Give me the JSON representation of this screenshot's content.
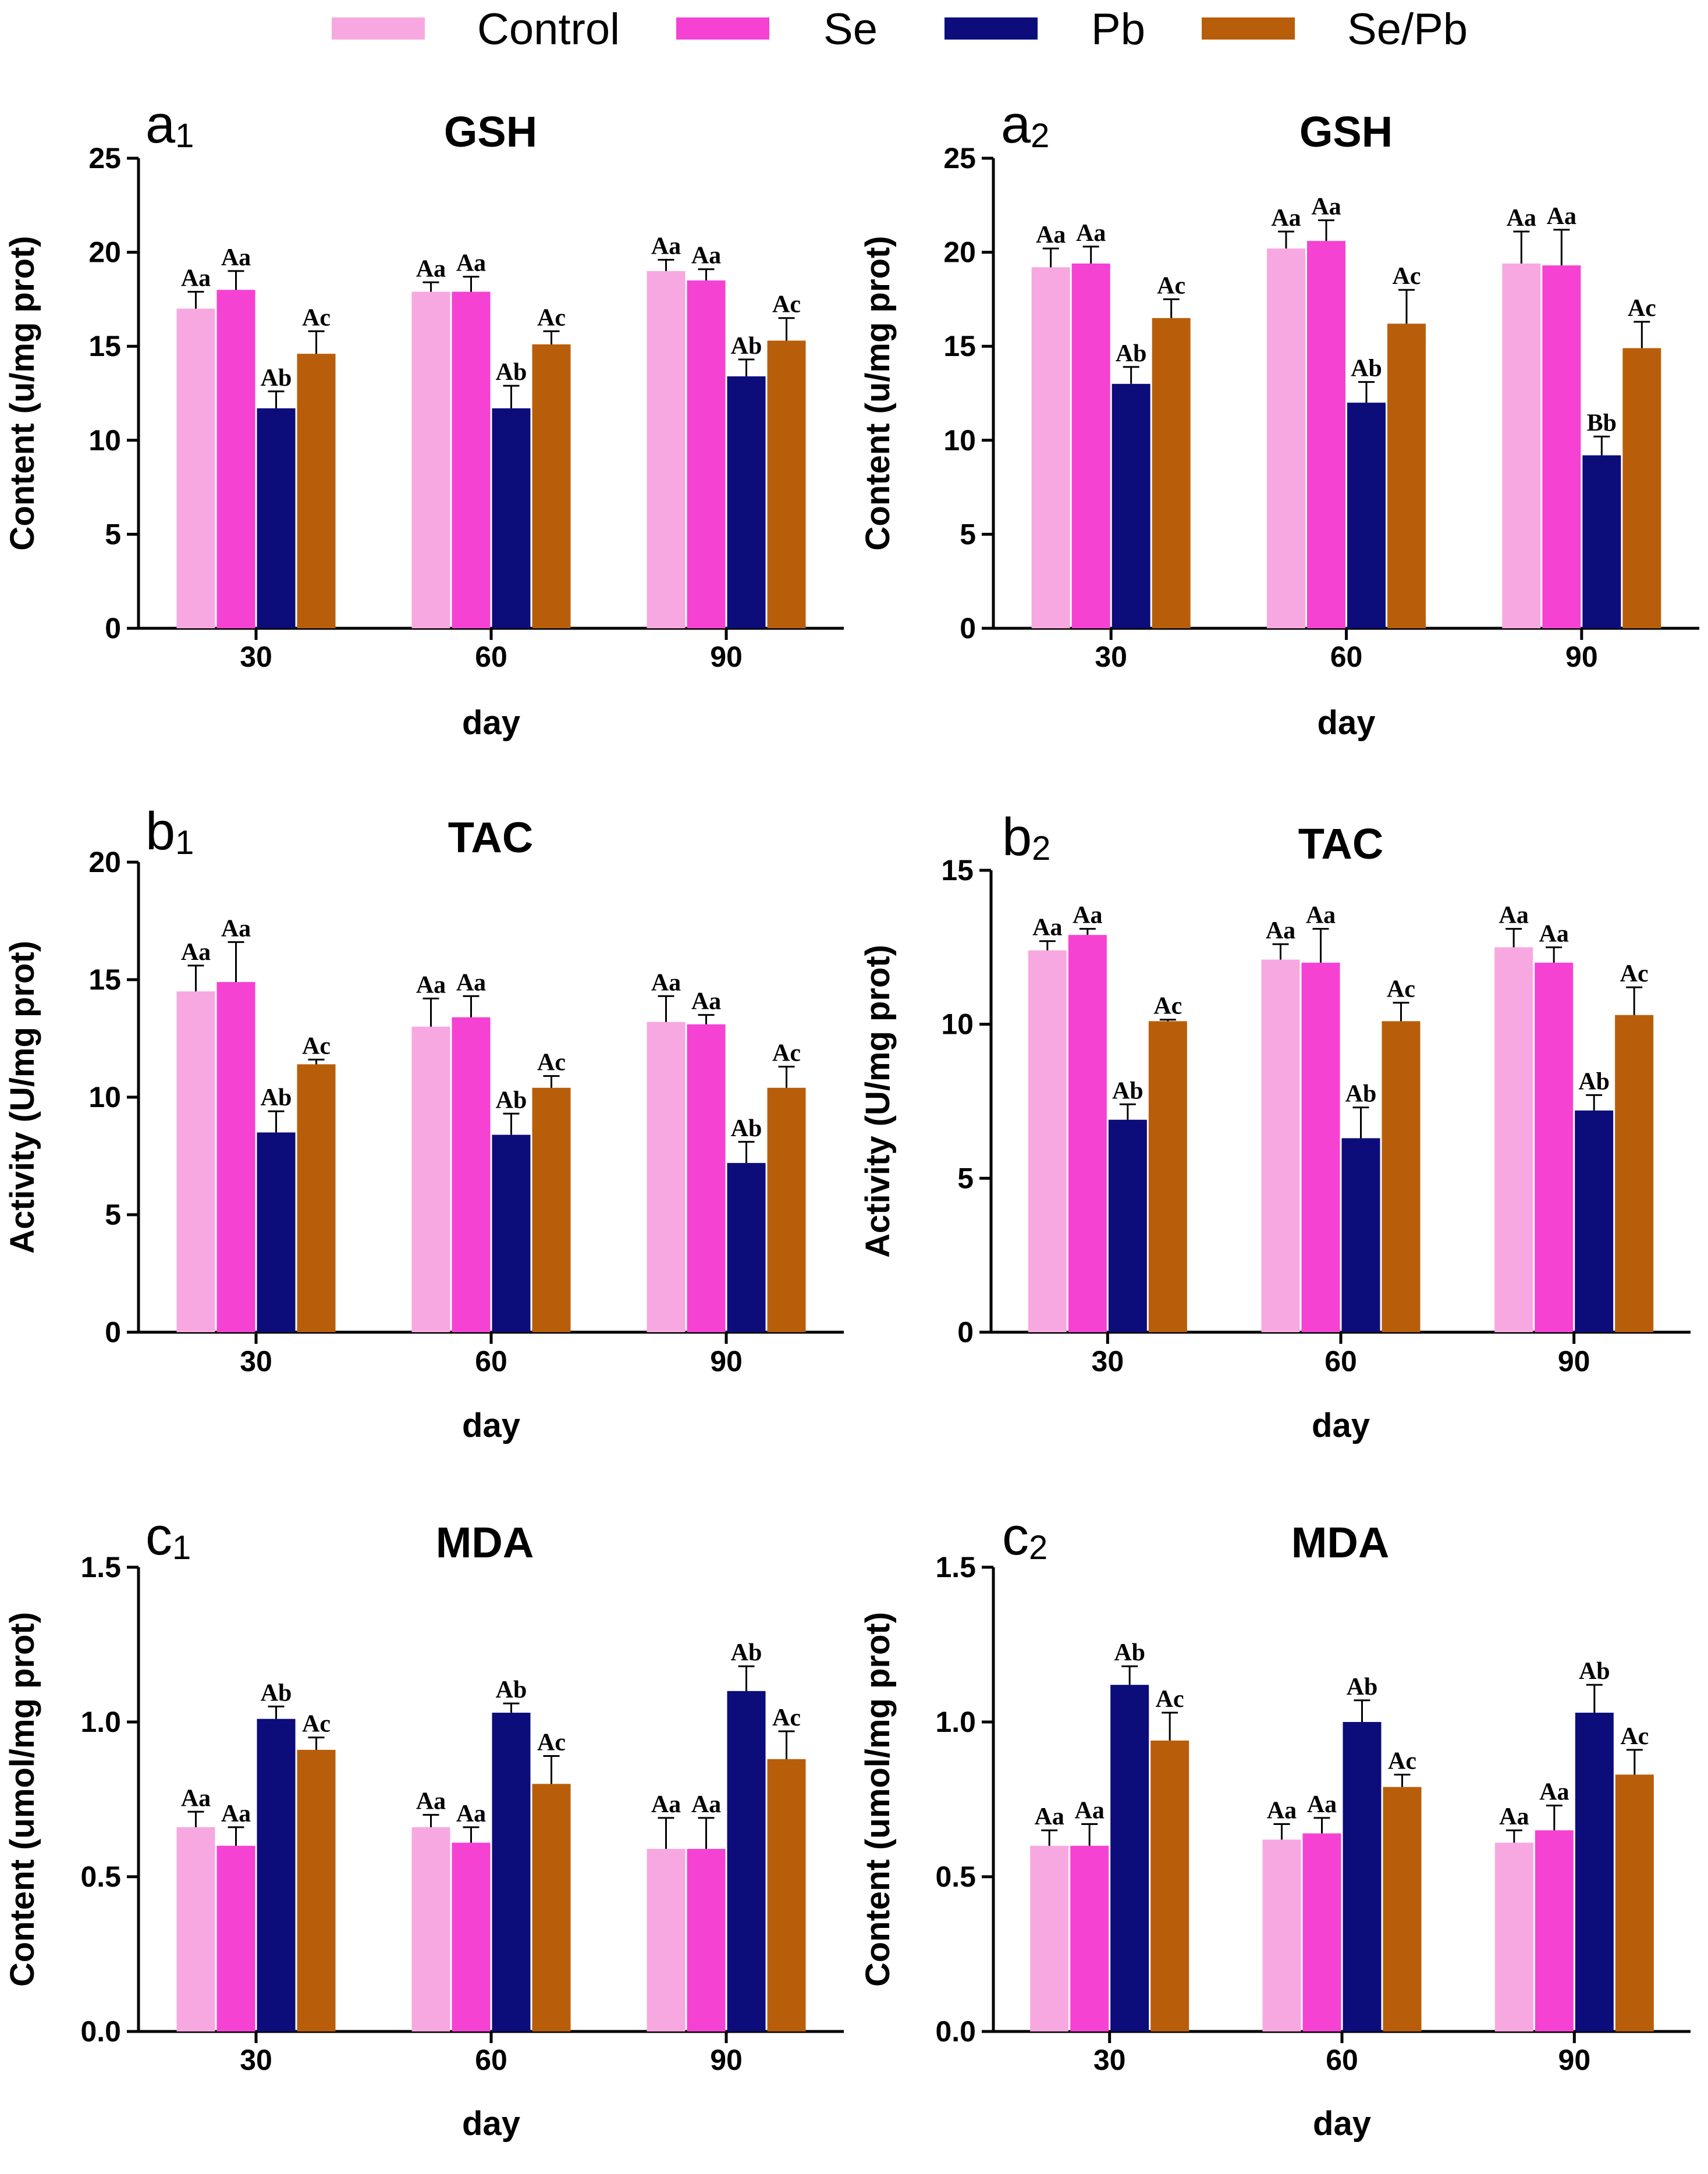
{
  "legend": [
    {
      "name": "Control",
      "color": "#F7A8E0"
    },
    {
      "name": "Se",
      "color": "#F542D2"
    },
    {
      "name": "Pb",
      "color": "#0C0D7A"
    },
    {
      "name": "Se/Pb",
      "color": "#B85E0A"
    }
  ],
  "chart_data": [
    {
      "id": "a1",
      "tag": "a",
      "sub": "1",
      "title": "GSH",
      "type": "bar",
      "ylabel": "Content (u/mg prot)",
      "xlabel": "day",
      "categories": [
        "30",
        "60",
        "90"
      ],
      "ylim": [
        0,
        25
      ],
      "yticks": [
        "0",
        "5",
        "10",
        "15",
        "20",
        "25"
      ],
      "series": [
        {
          "name": "Control",
          "values": [
            17.0,
            17.9,
            19.0
          ],
          "errors": [
            0.9,
            0.5,
            0.6
          ],
          "labels": [
            "Aa",
            "Aa",
            "Aa"
          ]
        },
        {
          "name": "Se",
          "values": [
            18.0,
            17.9,
            18.5
          ],
          "errors": [
            1.0,
            0.8,
            0.6
          ],
          "labels": [
            "Aa",
            "Aa",
            "Aa"
          ]
        },
        {
          "name": "Pb",
          "values": [
            11.7,
            11.7,
            13.4
          ],
          "errors": [
            0.9,
            1.2,
            0.9
          ],
          "labels": [
            "Ab",
            "Ab",
            "Ab"
          ]
        },
        {
          "name": "Se/Pb",
          "values": [
            14.6,
            15.1,
            15.3
          ],
          "errors": [
            1.2,
            0.7,
            1.2
          ],
          "labels": [
            "Ac",
            "Ac",
            "Ac"
          ]
        }
      ]
    },
    {
      "id": "a2",
      "tag": "a",
      "sub": "2",
      "title": "GSH",
      "type": "bar",
      "ylabel": "Content (u/mg prot)",
      "xlabel": "day",
      "categories": [
        "30",
        "60",
        "90"
      ],
      "ylim": [
        0,
        25
      ],
      "yticks": [
        "0",
        "5",
        "10",
        "15",
        "20",
        "25"
      ],
      "series": [
        {
          "name": "Control",
          "values": [
            19.2,
            20.2,
            19.4
          ],
          "errors": [
            1.0,
            0.9,
            1.7
          ],
          "labels": [
            "Aa",
            "Aa",
            "Aa"
          ]
        },
        {
          "name": "Se",
          "values": [
            19.4,
            20.6,
            19.3
          ],
          "errors": [
            0.9,
            1.1,
            1.9
          ],
          "labels": [
            "Aa",
            "Aa",
            "Aa"
          ]
        },
        {
          "name": "Pb",
          "values": [
            13.0,
            12.0,
            9.2
          ],
          "errors": [
            0.9,
            1.1,
            1.0
          ],
          "labels": [
            "Ab",
            "Ab",
            "Bb"
          ]
        },
        {
          "name": "Se/Pb",
          "values": [
            16.5,
            16.2,
            14.9
          ],
          "errors": [
            1.0,
            1.8,
            1.4
          ],
          "labels": [
            "Ac",
            "Ac",
            "Ac"
          ]
        }
      ]
    },
    {
      "id": "b1",
      "tag": "b",
      "sub": "1",
      "title": "TAC",
      "type": "bar",
      "ylabel": "Activity (U/mg prot)",
      "xlabel": "day",
      "categories": [
        "30",
        "60",
        "90"
      ],
      "ylim": [
        0,
        20
      ],
      "yticks": [
        "0",
        "5",
        "10",
        "15",
        "20"
      ],
      "series": [
        {
          "name": "Control",
          "values": [
            14.5,
            13.0,
            13.2
          ],
          "errors": [
            1.1,
            1.2,
            1.1
          ],
          "labels": [
            "Aa",
            "Aa",
            "Aa"
          ]
        },
        {
          "name": "Se",
          "values": [
            14.9,
            13.4,
            13.1
          ],
          "errors": [
            1.7,
            0.9,
            0.4
          ],
          "labels": [
            "Aa",
            "Aa",
            "Aa"
          ]
        },
        {
          "name": "Pb",
          "values": [
            8.5,
            8.4,
            7.2
          ],
          "errors": [
            0.9,
            0.9,
            0.9
          ],
          "labels": [
            "Ab",
            "Ab",
            "Ab"
          ]
        },
        {
          "name": "Se/Pb",
          "values": [
            11.4,
            10.4,
            10.4
          ],
          "errors": [
            0.2,
            0.5,
            0.9
          ],
          "labels": [
            "Ac",
            "Ac",
            "Ac"
          ]
        }
      ]
    },
    {
      "id": "b2",
      "tag": "b",
      "sub": "2",
      "title": "TAC",
      "type": "bar",
      "ylabel": "Activity (U/mg prot)",
      "xlabel": "day",
      "categories": [
        "30",
        "60",
        "90"
      ],
      "ylim": [
        0,
        15
      ],
      "yticks": [
        "0",
        "5",
        "10",
        "15"
      ],
      "series": [
        {
          "name": "Control",
          "values": [
            12.4,
            12.1,
            12.5
          ],
          "errors": [
            0.3,
            0.5,
            0.6
          ],
          "labels": [
            "Aa",
            "Aa",
            "Aa"
          ]
        },
        {
          "name": "Se",
          "values": [
            12.9,
            12.0,
            12.0
          ],
          "errors": [
            0.2,
            1.1,
            0.5
          ],
          "labels": [
            "Aa",
            "Aa",
            "Aa"
          ]
        },
        {
          "name": "Pb",
          "values": [
            6.9,
            6.3,
            7.2
          ],
          "errors": [
            0.5,
            1.0,
            0.5
          ],
          "labels": [
            "Ab",
            "Ab",
            "Ab"
          ]
        },
        {
          "name": "Se/Pb",
          "values": [
            10.1,
            10.1,
            10.3
          ],
          "errors": [
            0.05,
            0.6,
            0.9
          ],
          "labels": [
            "Ac",
            "Ac",
            "Ac"
          ]
        }
      ]
    },
    {
      "id": "c1",
      "tag": "c",
      "sub": "1",
      "title": "MDA",
      "type": "bar",
      "ylabel": "Content (umol/mg prot)",
      "xlabel": "day",
      "categories": [
        "30",
        "60",
        "90"
      ],
      "ylim": [
        0,
        1.5
      ],
      "yticks": [
        "0.0",
        "0.5",
        "1.0",
        "1.5"
      ],
      "series": [
        {
          "name": "Control",
          "values": [
            0.66,
            0.66,
            0.59
          ],
          "errors": [
            0.05,
            0.04,
            0.1
          ],
          "labels": [
            "Aa",
            "Aa",
            "Aa"
          ]
        },
        {
          "name": "Se",
          "values": [
            0.6,
            0.61,
            0.59
          ],
          "errors": [
            0.06,
            0.05,
            0.1
          ],
          "labels": [
            "Aa",
            "Aa",
            "Aa"
          ]
        },
        {
          "name": "Pb",
          "values": [
            1.01,
            1.03,
            1.1
          ],
          "errors": [
            0.04,
            0.03,
            0.08
          ],
          "labels": [
            "Ab",
            "Ab",
            "Ab"
          ]
        },
        {
          "name": "Se/Pb",
          "values": [
            0.91,
            0.8,
            0.88
          ],
          "errors": [
            0.04,
            0.09,
            0.09
          ],
          "labels": [
            "Ac",
            "Ac",
            "Ac"
          ]
        }
      ]
    },
    {
      "id": "c2",
      "tag": "c",
      "sub": "2",
      "title": "MDA",
      "type": "bar",
      "ylabel": "Content (umol/mg prot)",
      "xlabel": "day",
      "categories": [
        "30",
        "60",
        "90"
      ],
      "ylim": [
        0,
        1.5
      ],
      "yticks": [
        "0.0",
        "0.5",
        "1.0",
        "1.5"
      ],
      "series": [
        {
          "name": "Control",
          "values": [
            0.6,
            0.62,
            0.61
          ],
          "errors": [
            0.05,
            0.05,
            0.04
          ],
          "labels": [
            "Aa",
            "Aa",
            "Aa"
          ]
        },
        {
          "name": "Se",
          "values": [
            0.6,
            0.64,
            0.65
          ],
          "errors": [
            0.07,
            0.05,
            0.08
          ],
          "labels": [
            "Aa",
            "Aa",
            "Aa"
          ]
        },
        {
          "name": "Pb",
          "values": [
            1.12,
            1.0,
            1.03
          ],
          "errors": [
            0.06,
            0.07,
            0.09
          ],
          "labels": [
            "Ab",
            "Ab",
            "Ab"
          ]
        },
        {
          "name": "Se/Pb",
          "values": [
            0.94,
            0.79,
            0.83
          ],
          "errors": [
            0.09,
            0.04,
            0.08
          ],
          "labels": [
            "Ac",
            "Ac",
            "Ac"
          ]
        }
      ]
    }
  ]
}
